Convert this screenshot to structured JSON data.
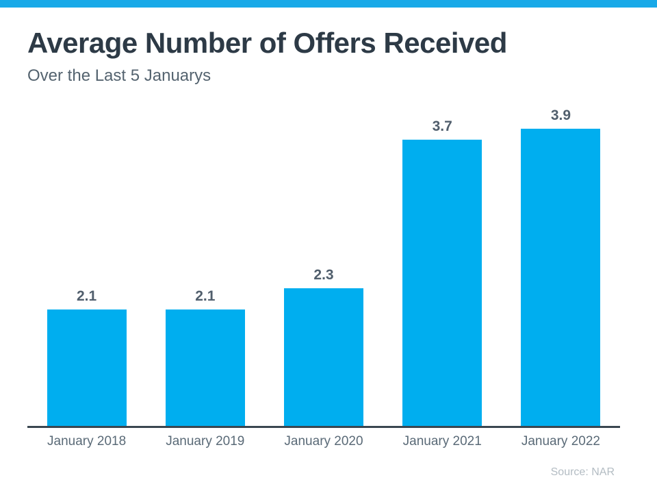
{
  "header": {
    "title": "Average Number of Offers Received",
    "subtitle": "Over the Last 5 Januarys"
  },
  "footer": {
    "source": "Source: NAR"
  },
  "colors": {
    "top_strip": "#18A9E8",
    "bar_fill": "#00AEEF",
    "title_text": "#2D3A46",
    "subtitle_text": "#54636F",
    "value_label_text": "#505E6C",
    "axis_line": "#3A4650",
    "x_label_text": "#5A6A77",
    "source_text": "#B3BCC3"
  },
  "chart_data": {
    "type": "bar",
    "title": "Average Number of Offers Received",
    "subtitle": "Over the Last 5 Januarys",
    "categories": [
      "January 2018",
      "January 2019",
      "January 2020",
      "January 2021",
      "January 2022"
    ],
    "values": [
      2.1,
      2.1,
      2.3,
      3.7,
      3.9
    ],
    "value_labels": [
      "2.1",
      "2.1",
      "2.3",
      "3.7",
      "3.9"
    ],
    "xlabel": "",
    "ylabel": "",
    "ylim": [
      1.0,
      4.0
    ],
    "grid": false,
    "legend": false,
    "bar_color": "#00AEEF",
    "annotations": [
      "Source: NAR"
    ]
  }
}
